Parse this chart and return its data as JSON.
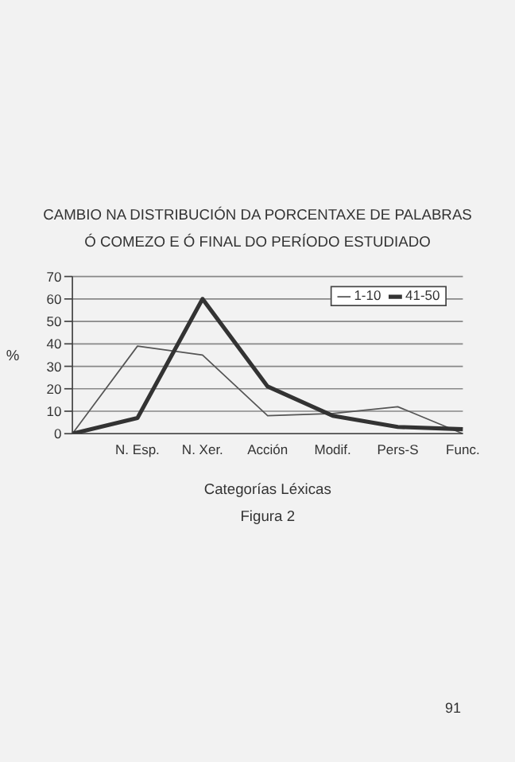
{
  "chart_data": {
    "type": "line",
    "title": "CAMBIO NA DISTRIBUCIÓN DA PORCENTAXE DE PALABRAS",
    "subtitle": "Ó COMEZO E Ó FINAL DO PERÍODO ESTUDIADO",
    "xlabel": "Categorías Léxicas",
    "ylabel": "%",
    "annotations": [
      "Figura 2",
      "91"
    ],
    "categories": [
      null,
      "N. Esp.",
      "N. Xer.",
      "Acción",
      "Modif.",
      "Pers-S",
      "Func."
    ],
    "series": [
      {
        "name": "1-10",
        "color": "#555555",
        "values": [
          0,
          39,
          35,
          8,
          9,
          12,
          0
        ]
      },
      {
        "name": "41-50",
        "color": "#333333",
        "values": [
          0,
          7,
          60,
          21,
          8,
          3,
          2
        ]
      }
    ],
    "ylim": [
      0,
      70
    ],
    "yticks": [
      0,
      10,
      20,
      30,
      40,
      50,
      60,
      70
    ],
    "grid": "y",
    "legend": "top right",
    "marker": "none",
    "line_style": "solid"
  }
}
